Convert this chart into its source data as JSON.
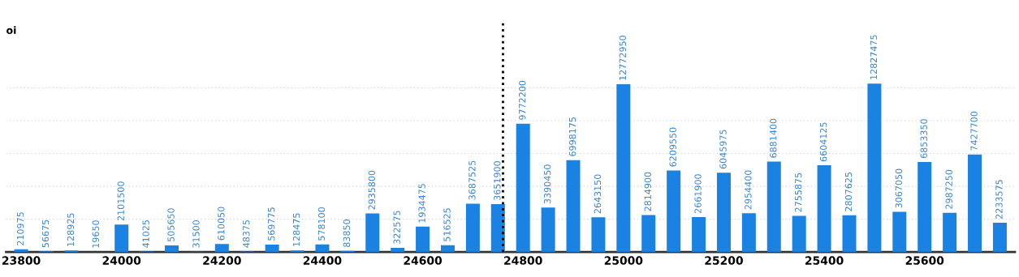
{
  "chart_data": {
    "type": "bar",
    "ylabel": "oi",
    "x": [
      23800,
      23850,
      23900,
      23950,
      24000,
      24050,
      24100,
      24150,
      24200,
      24250,
      24300,
      24350,
      24400,
      24450,
      24500,
      24550,
      24600,
      24650,
      24700,
      24750,
      24800,
      24850,
      24900,
      24950,
      25000,
      25050,
      25100,
      25150,
      25200,
      25250,
      25300,
      25350,
      25400,
      25450,
      25500,
      25550,
      25600,
      25650,
      25700,
      25750
    ],
    "values": [
      210975,
      56675,
      128925,
      19650,
      2101500,
      41025,
      505650,
      31500,
      610050,
      48375,
      569775,
      128475,
      578100,
      83850,
      2935800,
      322575,
      1934475,
      516525,
      3687525,
      3651900,
      9772200,
      3390450,
      6998175,
      2643150,
      12772950,
      2814900,
      6209550,
      2661900,
      6045975,
      2954400,
      6881400,
      2755875,
      6604125,
      2807625,
      12827475,
      3067050,
      6853350,
      2987250,
      7427700,
      2233575
    ],
    "color": "#1a82e2",
    "data_labels": true,
    "grid": "y",
    "tick_labels": "x",
    "xlim": [
      23770,
      25780
    ],
    "xticks": [
      23800,
      24000,
      24200,
      24400,
      24600,
      24800,
      25000,
      25200,
      25400,
      25600
    ],
    "ylim": [
      0,
      17500000
    ],
    "yticks": [
      {
        "value": 0,
        "label": null
      },
      {
        "value": 2500000,
        "label": null
      },
      {
        "value": 5000000,
        "label": null
      },
      {
        "value": 7500000,
        "label": null
      },
      {
        "value": 10000000,
        "label": null
      },
      {
        "value": 12500000,
        "label": null
      }
    ],
    "ref_lines": [
      {
        "axis": "x",
        "value": 24760,
        "color": "#000000",
        "line_style": "dotted"
      }
    ]
  }
}
